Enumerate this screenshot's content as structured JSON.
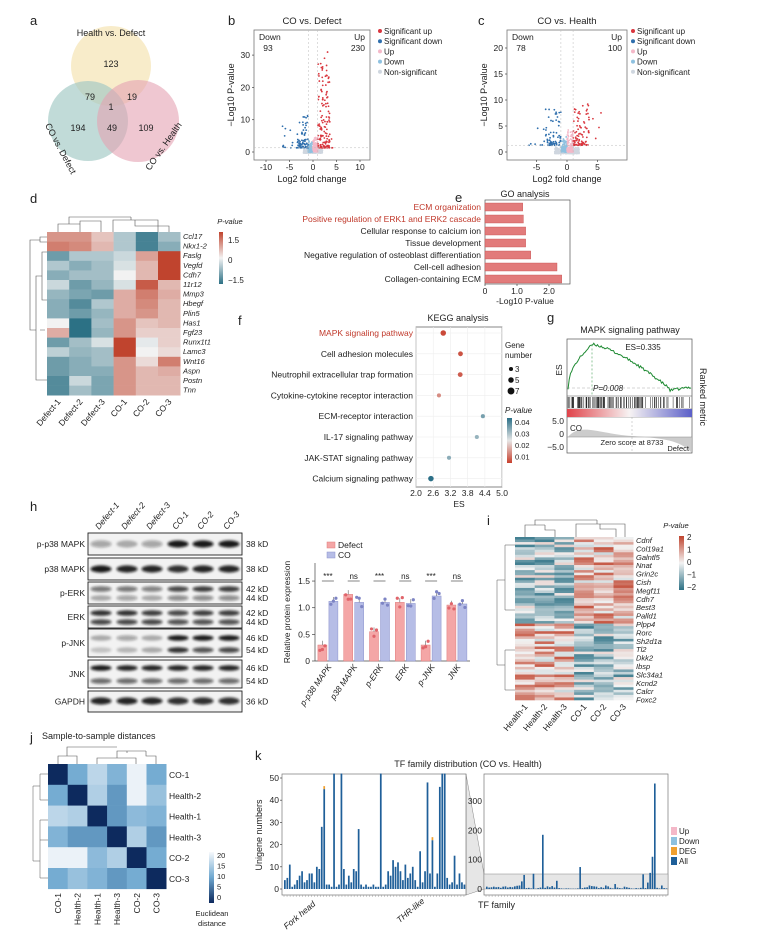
{
  "panel_letters": [
    "a",
    "b",
    "c",
    "d",
    "e",
    "f",
    "g",
    "h",
    "i",
    "j",
    "k"
  ],
  "chart_data": [
    {
      "panel": "a",
      "type": "venn",
      "sets": [
        "Health vs.  Defect",
        "CO vs. Defect",
        "CO vs. Health"
      ],
      "regions": {
        "health_defect_only": 123,
        "hd_cd": 79,
        "hd_ch": 19,
        "all": 1,
        "cd_only": 194,
        "cd_ch": 49,
        "ch_only": 109
      },
      "colors": [
        "#f6e6b8",
        "#9fc8c3",
        "#e4a2b3"
      ]
    },
    {
      "panel": "b",
      "type": "scatter",
      "title": "CO vs. Defect",
      "down_label": "Down",
      "down_count": 93,
      "up_label": "Up",
      "up_count": 230,
      "legend": [
        "Significant up",
        "Significant down",
        "Up",
        "Down",
        "Non-significant"
      ],
      "legend_colors": [
        "#d9363e",
        "#2f6fad",
        "#f4b8c8",
        "#8ec1e0",
        "#cfd6df"
      ],
      "xlabel": "Log2 fold change",
      "ylabel": "−Log10 P-value",
      "xticks": [
        -10,
        -5,
        0,
        5,
        10
      ],
      "yticks": [
        0,
        10,
        20,
        30
      ],
      "xlim": [
        -13,
        12
      ],
      "ylim": [
        -2,
        38
      ]
    },
    {
      "panel": "c",
      "type": "scatter",
      "title": "CO vs. Health",
      "down_label": "Down",
      "down_count": 78,
      "up_label": "Up",
      "up_count": 100,
      "legend": [
        "Significant up",
        "Significant down",
        "Up",
        "Down",
        "Non-significant"
      ],
      "legend_colors": [
        "#d9363e",
        "#2f6fad",
        "#f4b8c8",
        "#8ec1e0",
        "#cfd6df"
      ],
      "xlabel": "Log2 fold change",
      "ylabel": "−Log10 P-value",
      "xticks": [
        -5,
        0,
        5
      ],
      "yticks": [
        0,
        5,
        10,
        15,
        20
      ],
      "xlim": [
        -10,
        10
      ],
      "ylim": [
        -1.5,
        23
      ]
    },
    {
      "panel": "d",
      "type": "heatmap",
      "legend_title": "P-value",
      "legend_ticks": [
        "1.5",
        "0",
        "−1.5"
      ],
      "samples": [
        "Defect-1",
        "Defect-2",
        "Defect-3",
        "CO-1",
        "CO-2",
        "CO-3"
      ],
      "genes": [
        "Ccl17",
        "Nkx1-2",
        "Faslg",
        "Vegfd",
        "Cdh7",
        "11r12",
        "Mmp3",
        "Hbegf",
        "Plin5",
        "Has1",
        "Fgf23",
        "Runx1t1",
        "Lamc3",
        "Wnt16",
        "Aspn",
        "Postn",
        "Tnn"
      ],
      "values": [
        [
          0.8,
          0.8,
          0.4,
          -0.5,
          -1.3,
          -0.6
        ],
        [
          1.0,
          0.9,
          0.5,
          -0.5,
          -1.3,
          -0.8
        ],
        [
          -1.0,
          -0.5,
          -0.5,
          -0.3,
          0.7,
          1.5
        ],
        [
          -0.5,
          -0.8,
          -0.6,
          -0.2,
          0.5,
          1.5
        ],
        [
          -0.8,
          -0.6,
          -0.6,
          0.0,
          0.5,
          1.5
        ],
        [
          -0.3,
          -1.0,
          -0.7,
          -0.2,
          1.3,
          0.5
        ],
        [
          -0.7,
          -0.9,
          -1.0,
          0.6,
          1.0,
          0.6
        ],
        [
          -0.8,
          -1.2,
          -0.5,
          0.6,
          0.9,
          0.5
        ],
        [
          -0.8,
          -1.0,
          -0.7,
          0.6,
          0.8,
          0.5
        ],
        [
          0.0,
          -1.5,
          -0.6,
          0.8,
          0.4,
          0.5
        ],
        [
          0.6,
          -1.5,
          -0.7,
          0.8,
          0.3,
          0.3
        ],
        [
          -1.0,
          -0.6,
          -0.2,
          1.5,
          -0.1,
          0.3
        ],
        [
          -0.4,
          -0.7,
          -0.6,
          1.6,
          0.0,
          0.2
        ],
        [
          -1.0,
          -0.8,
          -0.6,
          0.8,
          0.2,
          1.0
        ],
        [
          -1.0,
          -0.8,
          -0.8,
          0.8,
          0.5,
          0.6
        ],
        [
          -1.2,
          -0.3,
          -0.9,
          0.8,
          0.5,
          0.5
        ],
        [
          -1.2,
          -0.6,
          -0.9,
          0.8,
          0.5,
          0.5
        ]
      ],
      "range": [
        -1.5,
        1.5
      ]
    },
    {
      "panel": "e",
      "type": "bar",
      "title": "GO analysis",
      "categories": [
        "ECM organization",
        "Positive regulation of ERK1 and ERK2 cascade",
        "Cellular response to calcium ion",
        "Tissue development",
        "Negative regulation of osteoblast differentiation",
        "Cell-cell adhesion",
        "Collagen-containing ECM"
      ],
      "values": [
        1.18,
        1.2,
        1.27,
        1.27,
        1.43,
        2.25,
        2.4
      ],
      "highlighted": [
        true,
        true,
        false,
        false,
        false,
        false,
        false
      ],
      "highlight_color": "#c0392b",
      "xlabel": "-Log10 P-value",
      "xticks": [
        "0",
        "1.0",
        "2.0"
      ],
      "xlim": [
        0,
        2.65
      ]
    },
    {
      "panel": "f",
      "type": "scatter",
      "title": "KEGG analysis",
      "categories": [
        "MAPK signaling pathway",
        "Cell adhesion molecules",
        "Neutrophil extracellular trap formation",
        "Cytokine-cytokine receptor interaction",
        "ECM-receptor interaction",
        "IL-17 signaling pathway",
        "JAK-STAT signaling pathway",
        "Calcium signaling pathway"
      ],
      "es": [
        2.95,
        3.55,
        3.54,
        2.8,
        4.33,
        4.12,
        3.15,
        2.52
      ],
      "p_value": [
        0.011,
        0.012,
        0.013,
        0.018,
        0.038,
        0.035,
        0.036,
        0.045
      ],
      "gene_number": [
        5,
        4,
        4,
        3,
        3,
        3,
        3,
        5
      ],
      "highlighted": [
        true,
        false,
        false,
        false,
        false,
        false,
        false,
        false
      ],
      "xlabel": "ES",
      "xticks": [
        "2.0",
        "2.6",
        "3.2",
        "3.8",
        "4.4",
        "5.0"
      ],
      "xlim": [
        2.0,
        5.0
      ],
      "size_legend_title": [
        "Gene",
        "number"
      ],
      "size_legend": [
        "3",
        "5",
        "7"
      ],
      "color_legend_title": "P-value",
      "color_legend": [
        "0.04",
        "0.03",
        "0.02",
        "0.01"
      ]
    },
    {
      "panel": "g",
      "type": "line",
      "title": "MAPK signaling pathway",
      "es_label": "ES=0.335",
      "p_label": "P=0.008",
      "ylabel": "ES",
      "metric_ticks": [
        "5.0",
        "0",
        "−5.0"
      ],
      "metric_ylabel": "Ranked metric",
      "left_group": "CO",
      "right_group": "Defect",
      "zero_label": "Zero score at 8733",
      "enrichment_score": 0.335
    },
    {
      "panel": "h",
      "type": "blot",
      "lanes": [
        "Defect-1",
        "Defect-2",
        "Defect-3",
        "CO-1",
        "CO-2",
        "CO-3"
      ],
      "rows": [
        {
          "protein": "p-p38 MAPK",
          "sizes": [
            "38 kD"
          ],
          "intensity": [
            [
              0.35,
              0.3,
              0.35,
              0.95,
              0.95,
              0.95
            ]
          ]
        },
        {
          "protein": "p38 MAPK",
          "sizes": [
            "38 kD"
          ],
          "intensity": [
            [
              0.95,
              0.9,
              0.9,
              0.85,
              0.9,
              0.9
            ]
          ]
        },
        {
          "protein": "p-ERK",
          "sizes": [
            "42 kD",
            "44 kD"
          ],
          "intensity": [
            [
              0.55,
              0.55,
              0.5,
              0.75,
              0.8,
              0.8
            ],
            [
              0.3,
              0.35,
              0.3,
              0.45,
              0.45,
              0.45
            ]
          ]
        },
        {
          "protein": "ERK",
          "sizes": [
            "42 kD",
            "44 kD"
          ],
          "intensity": [
            [
              0.85,
              0.85,
              0.8,
              0.75,
              0.8,
              0.8
            ],
            [
              0.75,
              0.75,
              0.75,
              0.7,
              0.7,
              0.7
            ]
          ]
        },
        {
          "protein": "p-JNK",
          "sizes": [
            "46 kD",
            "54 kD"
          ],
          "intensity": [
            [
              0.3,
              0.35,
              0.3,
              0.95,
              0.95,
              0.95
            ],
            [
              0.2,
              0.25,
              0.3,
              0.85,
              0.7,
              0.75
            ]
          ]
        },
        {
          "protein": "JNK",
          "sizes": [
            "46 kD",
            "54 kD"
          ],
          "intensity": [
            [
              0.95,
              0.9,
              0.9,
              0.9,
              0.9,
              0.9
            ],
            [
              0.6,
              0.6,
              0.6,
              0.6,
              0.6,
              0.6
            ]
          ]
        },
        {
          "protein": "GAPDH",
          "sizes": [
            "36 kD"
          ],
          "intensity": [
            [
              0.9,
              0.9,
              0.9,
              0.85,
              0.85,
              0.85
            ]
          ]
        }
      ]
    },
    {
      "panel": "h",
      "type": "bar",
      "categories": [
        "p-p38 MAPK",
        "p38 MAPK",
        "p-ERK",
        "ERK",
        "p-JNK",
        "JNK"
      ],
      "series": [
        {
          "name": "Defect",
          "values": [
            0.3,
            1.25,
            0.55,
            1.1,
            0.3,
            1.05
          ],
          "color": "#f4a6a6"
        },
        {
          "name": "CO",
          "values": [
            1.12,
            1.1,
            1.1,
            1.08,
            1.22,
            1.07
          ],
          "color": "#b6bde6"
        }
      ],
      "significance": [
        "***",
        "ns",
        "***",
        "ns",
        "***",
        "ns"
      ],
      "ylabel": "Relative protein expression",
      "yticks": [
        "0",
        "0.5",
        "1.0",
        "1.5"
      ],
      "ylim": [
        0,
        1.75
      ]
    },
    {
      "panel": "i",
      "type": "heatmap",
      "legend_title": "P-value",
      "legend_ticks": [
        "2",
        "1",
        "0",
        "−1",
        "−2"
      ],
      "samples": [
        "Health-1",
        "Health-2",
        "Health-3",
        "CO-1",
        "CO-2",
        "CO-3"
      ],
      "genes": [
        "Cdnf",
        "Col19a1",
        "Galntl5",
        "Nnat",
        "Grin2c",
        "Cish",
        "Megf11",
        "Cdh7",
        "Best3",
        "Palld1",
        "Plpp4",
        "Rorc",
        "Sh2d1a",
        "Tl2",
        "Dkk2",
        "Ibsp",
        "Slc34a1",
        "Kcnd2",
        "Calcr",
        "Foxc2"
      ],
      "range": [
        -2,
        2
      ]
    },
    {
      "panel": "j",
      "type": "heatmap",
      "title": "Sample-to-sample distances",
      "rows": [
        "CO-1",
        "Health-2",
        "Health-1",
        "Health-3",
        "CO-2",
        "CO-3"
      ],
      "columns": [
        "CO-1",
        "Health-2",
        "Health-1",
        "Health-3",
        "CO-2",
        "CO-3"
      ],
      "values": [
        [
          0,
          12,
          18,
          13,
          22,
          12
        ],
        [
          12,
          0,
          17,
          10,
          22,
          15
        ],
        [
          18,
          17,
          0,
          10,
          14,
          13
        ],
        [
          13,
          10,
          10,
          0,
          17,
          10
        ],
        [
          22,
          22,
          14,
          17,
          0,
          12
        ],
        [
          12,
          15,
          13,
          10,
          12,
          0
        ]
      ],
      "legend_ticks": [
        "20",
        "15",
        "10",
        "5",
        "0"
      ],
      "legend_title": [
        "Euclidean",
        "distance"
      ],
      "range": [
        0,
        23
      ]
    },
    {
      "panel": "k",
      "type": "bar",
      "title": "TF family distribution (CO vs. Health)",
      "ylabel": "Unigene numbers",
      "xlabel": "TF family",
      "category_labels": [
        "Fork head",
        "THR-like"
      ],
      "left_yticks": [
        "0",
        "10",
        "20",
        "30",
        "40",
        "50"
      ],
      "right_yticks": [
        "0",
        "100",
        "200",
        "300"
      ],
      "left_values": [
        4,
        5,
        11,
        1,
        2,
        4,
        6,
        8,
        3,
        4,
        7,
        7,
        3,
        10,
        9,
        28,
        45,
        2,
        2,
        1,
        52,
        1,
        2,
        52,
        9,
        2,
        6,
        3,
        9,
        8,
        27,
        2,
        1,
        2,
        1,
        1,
        2,
        1,
        1,
        52,
        1,
        2,
        8,
        6,
        13,
        10,
        12,
        8,
        4,
        11,
        5,
        7,
        10,
        4,
        1,
        17,
        3,
        8,
        48,
        7,
        22,
        1,
        7,
        46,
        52,
        52,
        5,
        2,
        3,
        15,
        2,
        7,
        3,
        2
      ],
      "right_values": [
        8,
        5,
        6,
        8,
        6,
        7,
        4,
        8,
        9,
        5,
        7,
        6,
        9,
        11,
        12,
        26,
        48,
        3,
        4,
        2,
        52,
        1,
        3,
        5,
        185,
        4,
        9,
        6,
        10,
        5,
        28,
        3,
        2,
        1,
        2,
        2,
        1,
        1,
        1,
        2,
        75,
        3,
        5,
        6,
        12,
        10,
        9,
        8,
        3,
        6,
        4,
        12,
        9,
        4,
        2,
        17,
        5,
        3,
        2,
        8,
        6,
        4,
        2,
        1,
        3,
        2,
        4,
        50,
        3,
        22,
        55,
        110,
        360,
        4,
        2,
        12,
        3,
        2
      ],
      "legend": [
        "Up",
        "Down",
        "DEG",
        "All"
      ],
      "legend_colors": [
        "#f4b8c8",
        "#8ec1e0",
        "#f0a030",
        "#1f5f99"
      ]
    }
  ]
}
